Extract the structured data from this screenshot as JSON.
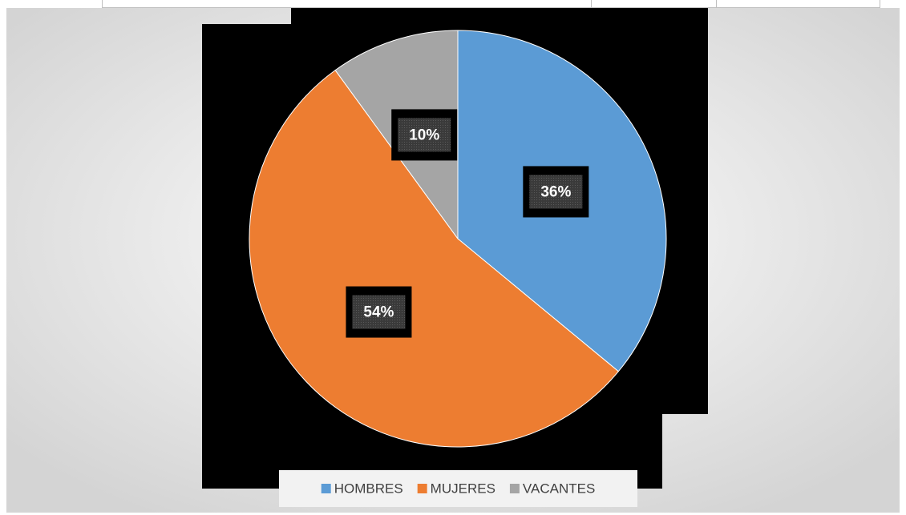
{
  "chart_data": {
    "type": "pie",
    "categories": [
      "HOMBRES",
      "MUJERES",
      "VACANTES"
    ],
    "values": [
      36,
      54,
      10
    ],
    "value_labels": [
      "36%",
      "54%",
      "10%"
    ],
    "colors": [
      "#5b9bd5",
      "#ed7d31",
      "#a5a5a5"
    ],
    "legend": "bottom"
  }
}
